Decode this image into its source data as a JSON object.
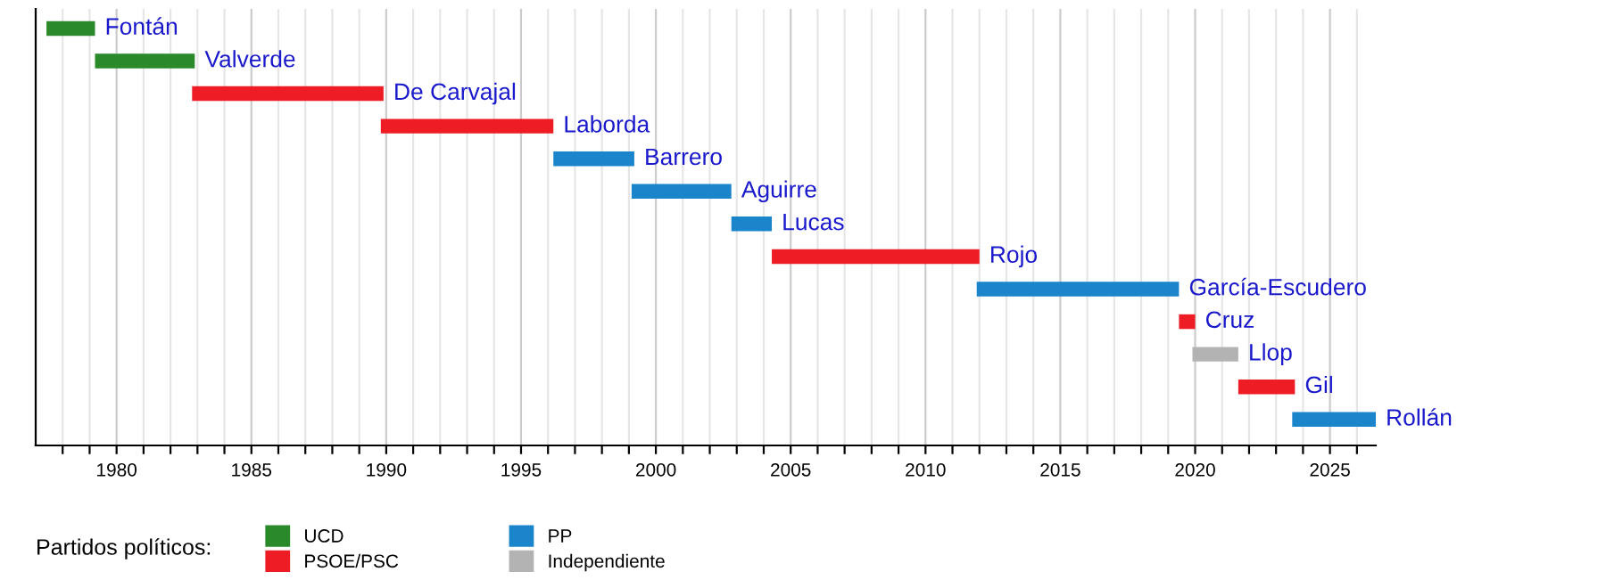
{
  "chart_data": {
    "type": "bar",
    "orientation": "horizontal",
    "categories": [
      "Fontán",
      "Valverde",
      "De Carvajal",
      "Laborda",
      "Barrero",
      "Aguirre",
      "Lucas",
      "Rojo",
      "García-Escudero",
      "Cruz",
      "Llop",
      "Gil",
      "Rollán"
    ],
    "series": [
      {
        "name": "UCD",
        "color": "#2a8a2a",
        "base": [
          1977.4,
          1979.2,
          null,
          null,
          null,
          null,
          null,
          null,
          null,
          null,
          null,
          null,
          null
        ],
        "values": [
          1.8,
          3.7,
          null,
          null,
          null,
          null,
          null,
          null,
          null,
          null,
          null,
          null,
          null
        ]
      },
      {
        "name": "PSOE/PSC",
        "color": "#ee1c25",
        "base": [
          null,
          null,
          1982.8,
          1989.8,
          null,
          null,
          null,
          2004.3,
          null,
          2019.4,
          null,
          2021.6,
          null
        ],
        "values": [
          null,
          null,
          7.1,
          6.4,
          null,
          null,
          null,
          7.7,
          null,
          0.6,
          null,
          2.1,
          null
        ]
      },
      {
        "name": "PP",
        "color": "#1b85cc",
        "base": [
          null,
          null,
          null,
          null,
          1996.2,
          1999.1,
          2002.8,
          null,
          2011.9,
          null,
          null,
          null,
          2023.6
        ],
        "values": [
          null,
          null,
          null,
          null,
          3.0,
          3.7,
          1.5,
          null,
          7.5,
          null,
          null,
          null,
          3.1
        ]
      },
      {
        "name": "Independiente",
        "color": "#b3b3b3",
        "base": [
          null,
          null,
          null,
          null,
          null,
          null,
          null,
          null,
          null,
          null,
          2019.9,
          null,
          null
        ],
        "values": [
          null,
          null,
          null,
          null,
          null,
          null,
          null,
          null,
          null,
          null,
          1.7,
          null,
          null
        ]
      }
    ],
    "xlim": [
      1977.0,
      2026.7
    ],
    "xticks": [
      {
        "value": 1978,
        "label": null
      },
      {
        "value": 1979,
        "label": null
      },
      1980,
      {
        "value": 1981,
        "label": null
      },
      {
        "value": 1982,
        "label": null
      },
      {
        "value": 1983,
        "label": null
      },
      {
        "value": 1984,
        "label": null
      },
      1985,
      {
        "value": 1986,
        "label": null
      },
      {
        "value": 1987,
        "label": null
      },
      {
        "value": 1988,
        "label": null
      },
      {
        "value": 1989,
        "label": null
      },
      1990,
      {
        "value": 1991,
        "label": null
      },
      {
        "value": 1992,
        "label": null
      },
      {
        "value": 1993,
        "label": null
      },
      {
        "value": 1994,
        "label": null
      },
      1995,
      {
        "value": 1996,
        "label": null
      },
      {
        "value": 1997,
        "label": null
      },
      {
        "value": 1998,
        "label": null
      },
      {
        "value": 1999,
        "label": null
      },
      2000,
      {
        "value": 2001,
        "label": null
      },
      {
        "value": 2002,
        "label": null
      },
      {
        "value": 2003,
        "label": null
      },
      {
        "value": 2004,
        "label": null
      },
      2005,
      {
        "value": 2006,
        "label": null
      },
      {
        "value": 2007,
        "label": null
      },
      {
        "value": 2008,
        "label": null
      },
      {
        "value": 2009,
        "label": null
      },
      2010,
      {
        "value": 2011,
        "label": null
      },
      {
        "value": 2012,
        "label": null
      },
      {
        "value": 2013,
        "label": null
      },
      {
        "value": 2014,
        "label": null
      },
      2015,
      {
        "value": 2016,
        "label": null
      },
      {
        "value": 2017,
        "label": null
      },
      {
        "value": 2018,
        "label": null
      },
      {
        "value": 2019,
        "label": null
      },
      2020,
      {
        "value": 2021,
        "label": null
      },
      {
        "value": 2022,
        "label": null
      },
      {
        "value": 2023,
        "label": null
      },
      {
        "value": 2024,
        "label": null
      },
      2025,
      {
        "value": 2026,
        "label": null
      }
    ],
    "grid": "x",
    "legend": "bottom",
    "legend_title": "Partidos políticos:"
  }
}
